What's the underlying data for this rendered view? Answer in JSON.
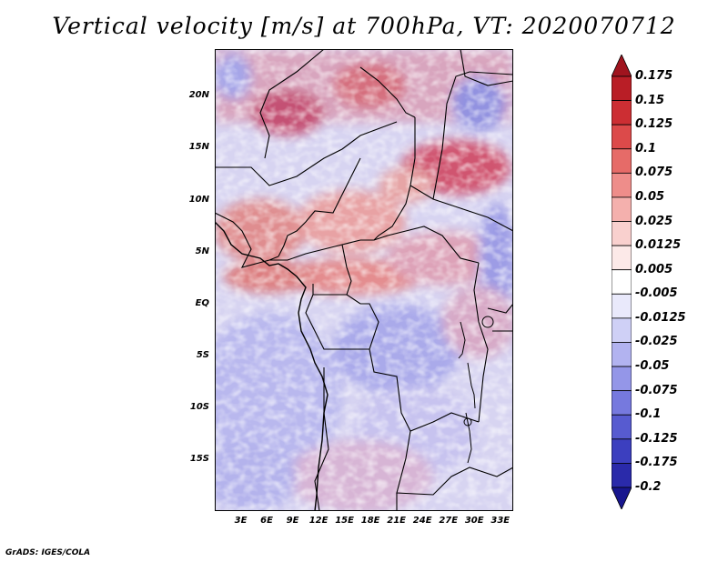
{
  "title": "Vertical velocity [m/s] at 700hPa, VT: 2020070712",
  "credit": "GrADS: IGES/COLA",
  "map": {
    "lat_labels": [
      "20N",
      "15N",
      "10N",
      "5N",
      "EQ",
      "5S",
      "10S",
      "15S"
    ],
    "lat_values": [
      20,
      15,
      10,
      5,
      0,
      -5,
      -10,
      -15
    ],
    "lon_labels": [
      "3E",
      "6E",
      "9E",
      "12E",
      "15E",
      "18E",
      "21E",
      "24E",
      "27E",
      "30E",
      "33E"
    ],
    "lon_values": [
      3,
      6,
      9,
      12,
      15,
      18,
      21,
      24,
      27,
      30,
      33
    ],
    "lat_range": [
      -20,
      24.5
    ],
    "lon_range": [
      0,
      34.5
    ],
    "field": "vertical velocity",
    "units": "m/s",
    "level": "700hPa",
    "valid_time": "2020070712"
  },
  "colorbar": {
    "labels": [
      "0.175",
      "0.15",
      "0.125",
      "0.1",
      "0.075",
      "0.05",
      "0.025",
      "0.0125",
      "0.005",
      "-0.005",
      "-0.0125",
      "-0.025",
      "-0.05",
      "-0.075",
      "-0.1",
      "-0.125",
      "-0.175",
      "-0.2"
    ],
    "colors": [
      "#a0141e",
      "#b91e26",
      "#cc2e33",
      "#dc4a4a",
      "#e66b68",
      "#ee8d8a",
      "#f4b0ad",
      "#f9d0ce",
      "#fce9e8",
      "#ffffff",
      "#e9e9fb",
      "#cfd0f6",
      "#b2b3f0",
      "#9496e8",
      "#7679de",
      "#575bd0",
      "#3c3fbf",
      "#2a2aaa",
      "#18168e"
    ]
  }
}
